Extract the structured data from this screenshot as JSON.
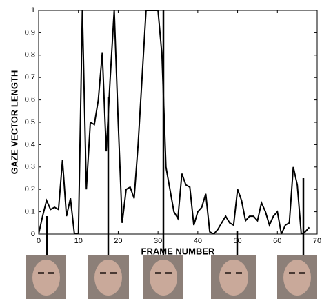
{
  "chart_data": {
    "type": "line",
    "xlabel": "FRAME NUMBER",
    "ylabel": "GAZE VECTOR LENGTH",
    "x": [
      0,
      1,
      2,
      3,
      4,
      5,
      6,
      7,
      8,
      9,
      10,
      11,
      12,
      13,
      14,
      15,
      16,
      17,
      18,
      19,
      20,
      21,
      22,
      23,
      24,
      25,
      26,
      27,
      28,
      29,
      30,
      31,
      32,
      33,
      34,
      35,
      36,
      37,
      38,
      39,
      40,
      41,
      42,
      43,
      44,
      45,
      46,
      47,
      48,
      49,
      50,
      51,
      52,
      53,
      54,
      55,
      56,
      57,
      58,
      59,
      60,
      61,
      62,
      63,
      64,
      65,
      66,
      67,
      68
    ],
    "series": [
      {
        "name": "gaze",
        "color": "#000000",
        "values": [
          0,
          0.08,
          0.15,
          0.11,
          0.12,
          0.11,
          0.33,
          0.08,
          0.16,
          0,
          0,
          1,
          0.2,
          0.5,
          0.49,
          0.6,
          0.81,
          0.37,
          0.7,
          1,
          0.5,
          0.05,
          0.2,
          0.21,
          0.16,
          0.4,
          0.7,
          1,
          1,
          1,
          1,
          0.8,
          0.3,
          0.2,
          0.1,
          0.07,
          0.27,
          0.22,
          0.21,
          0.04,
          0.1,
          0.12,
          0.18,
          0.01,
          0,
          0.02,
          0.05,
          0.08,
          0.05,
          0.04,
          0.2,
          0.15,
          0.06,
          0.08,
          0.08,
          0.06,
          0.14,
          0.1,
          0.04,
          0.08,
          0.1,
          0,
          0.04,
          0.05,
          0.3,
          0.22,
          0,
          0.01,
          0.03
        ]
      }
    ],
    "xlim": [
      0,
      70
    ],
    "xticks": [
      0,
      10,
      20,
      30,
      40,
      50,
      60,
      70
    ],
    "ylim": [
      0,
      1
    ],
    "yticks": [
      0,
      0.1,
      0.2,
      0.3,
      0.4,
      0.5,
      0.6,
      0.7,
      0.8,
      0.9,
      1
    ],
    "grid": false
  }
}
